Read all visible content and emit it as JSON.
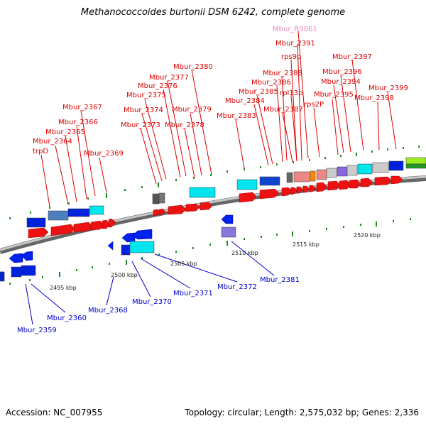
{
  "title": "Methanococcoides burtonii DSM 6242, complete genome",
  "accession": "Accession: NC_007955",
  "topology": "Topology: circular; Length: 2,575,032 bp; Genes: 2,336",
  "kbp_labels": [
    "2495 kbp",
    "2500 kbp",
    "2505 kbp",
    "2510 kbp",
    "2515 kbp",
    "2520 kbp"
  ],
  "forward_genes": [
    "Mbur_R0061",
    "Mbur_2391",
    "rps9p",
    "Mbur_2397",
    "Mbur_2380",
    "Mbur_2388",
    "Mbur_2396",
    "Mbur_2377",
    "Mbur_2386",
    "Mbur_2394",
    "Mbur_2376",
    "Mbur_2385",
    "rpl13p",
    "Mbur_2399",
    "Mbur_2375",
    "Mbur_2395",
    "Mbur_2384",
    "Mbur_2398",
    "Mbur_2367",
    "Mbur_2374",
    "Mbur_2379",
    "Mbur_2387",
    "rps2P",
    "Mbur_2366",
    "Mbur_2383",
    "Mbur_2373",
    "Mbur_2378",
    "Mbur_2365",
    "Mbur_2364",
    "trpD",
    "Mbur_2369"
  ],
  "reverse_genes": [
    "Mbur_2381",
    "Mbur_2372",
    "Mbur_2371",
    "Mbur_2370",
    "Mbur_2368",
    "Mbur_2360",
    "Mbur_2359"
  ],
  "colors": {
    "forward_label": "#dd0000",
    "reverse_label": "#0000cc",
    "rna_label": "#ee88bb",
    "backbone": "#888888",
    "tick": "#228822"
  }
}
